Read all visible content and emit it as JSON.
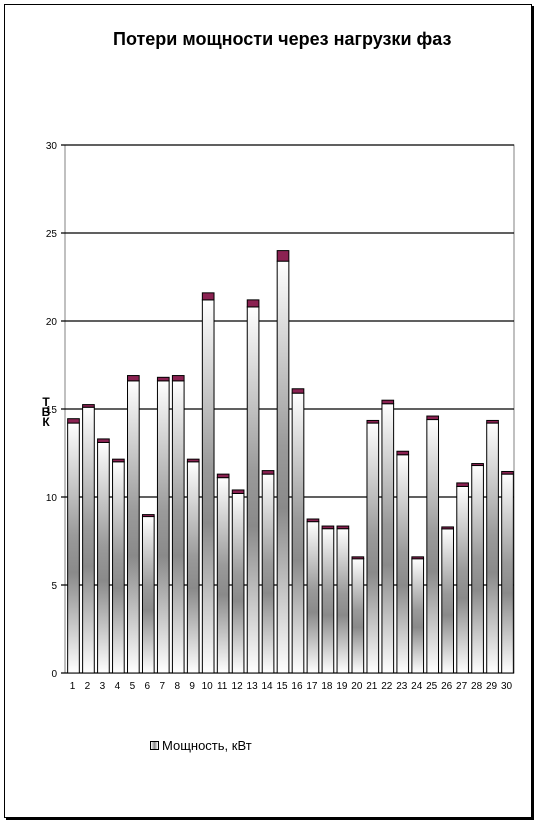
{
  "chart_data": {
    "type": "bar",
    "title": "Потери мощности через нагрузки фаз",
    "ylabel": "Т В К",
    "ylim": [
      0,
      30
    ],
    "yticks": [
      0,
      5,
      10,
      15,
      20,
      25,
      30
    ],
    "grid": true,
    "legend_position": "bottom-left",
    "categories": [
      "1",
      "2",
      "3",
      "4",
      "5",
      "6",
      "7",
      "8",
      "9",
      "10",
      "11",
      "12",
      "13",
      "14",
      "15",
      "16",
      "17",
      "18",
      "19",
      "20",
      "21",
      "22",
      "23",
      "24",
      "25",
      "26",
      "27",
      "28",
      "29",
      "30"
    ],
    "series": [
      {
        "name": "Мощность, кВт",
        "values": [
          14.2,
          15.1,
          13.1,
          12.0,
          16.6,
          8.9,
          16.6,
          16.6,
          12.0,
          21.2,
          11.1,
          10.2,
          20.8,
          11.3,
          23.4,
          15.9,
          8.6,
          8.2,
          8.2,
          6.5,
          14.2,
          15.3,
          12.4,
          6.5,
          14.4,
          8.2,
          10.6,
          11.8,
          14.2,
          11.3
        ]
      },
      {
        "name": "",
        "values": [
          0.25,
          0.15,
          0.2,
          0.15,
          0.3,
          0.1,
          0.2,
          0.3,
          0.15,
          0.4,
          0.2,
          0.2,
          0.4,
          0.2,
          0.6,
          0.25,
          0.15,
          0.15,
          0.15,
          0.1,
          0.15,
          0.2,
          0.2,
          0.1,
          0.2,
          0.1,
          0.2,
          0.1,
          0.15,
          0.15
        ]
      }
    ],
    "colors": {
      "bar_dark": "#9a9a9a",
      "bar_light": "#ffffff",
      "cap": "#8b2252",
      "grid": "#000000",
      "frame": "#808080"
    }
  }
}
